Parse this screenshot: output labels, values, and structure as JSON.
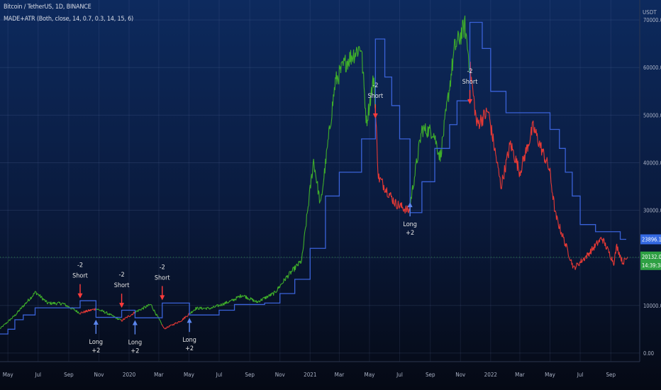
{
  "header": {
    "symbol_line": "Bitcoin / TetherUS, 1D, BINANCE",
    "indicator_line": "MADE+ATR (Both, close, 14, 0.7, 0.3, 14, 15, 6)"
  },
  "axis": {
    "unit": "USDT"
  },
  "price_badges": {
    "upper": "23896.18",
    "last": "20132.06",
    "countdown": "14:39:38"
  },
  "colors": {
    "background_top": "#0d2a5e",
    "background_bottom": "#050914",
    "bull": "#3fae2a",
    "bear": "#e53935",
    "trail": "#3a62d8",
    "short_arrow": "#ff3b3b",
    "long_arrow": "#5b86ee",
    "label_text": "#e6e6e6",
    "axis_text": "#aab2c5",
    "upper_badge": "#3469e2",
    "last_badge": "#2ea043"
  },
  "chart_data": {
    "type": "line",
    "x_ticks": [
      "May",
      "Jul",
      "Sep",
      "Nov",
      "2020",
      "Mar",
      "May",
      "Jul",
      "Sep",
      "Nov",
      "2021",
      "Mar",
      "May",
      "Jul",
      "Sep",
      "Nov",
      "2022",
      "Mar",
      "May",
      "Jul",
      "Sep"
    ],
    "y_ticks": [
      "0.00",
      "10000.00",
      "20000.00",
      "30000.00",
      "40000.00",
      "50000.00",
      "60000.00",
      "70000.00"
    ],
    "ylim": [
      -3000,
      73000
    ],
    "grid": true,
    "series": [
      {
        "role": "price",
        "points": [
          [
            "2019-04-15",
            5100
          ],
          [
            "2019-05-15",
            7900
          ],
          [
            "2019-06-26",
            12800
          ],
          [
            "2019-07-20",
            10500
          ],
          [
            "2019-08-20",
            10400
          ],
          [
            "2019-09-24",
            8400
          ],
          [
            "2019-10-26",
            9300
          ],
          [
            "2019-11-15",
            8500
          ],
          [
            "2019-12-17",
            6800
          ],
          [
            "2020-01-15",
            8700
          ],
          [
            "2020-02-14",
            10200
          ],
          [
            "2020-03-12",
            5100
          ],
          [
            "2020-04-15",
            6800
          ],
          [
            "2020-05-15",
            9400
          ],
          [
            "2020-06-15",
            9400
          ],
          [
            "2020-07-27",
            11000
          ],
          [
            "2020-08-17",
            12200
          ],
          [
            "2020-09-15",
            10700
          ],
          [
            "2020-10-21",
            12600
          ],
          [
            "2020-11-15",
            16000
          ],
          [
            "2020-12-15",
            19400
          ],
          [
            "2021-01-08",
            40500
          ],
          [
            "2021-01-22",
            31000
          ],
          [
            "2021-02-21",
            57000
          ],
          [
            "2021-03-13",
            61000
          ],
          [
            "2021-04-14",
            64500
          ],
          [
            "2021-04-25",
            48500
          ],
          [
            "2021-05-10",
            58000
          ],
          [
            "2021-05-19",
            37000
          ],
          [
            "2021-06-22",
            31500
          ],
          [
            "2021-07-20",
            29800
          ],
          [
            "2021-08-15",
            47000
          ],
          [
            "2021-09-07",
            46500
          ],
          [
            "2021-09-21",
            41000
          ],
          [
            "2021-10-20",
            64000
          ],
          [
            "2021-11-10",
            68800
          ],
          [
            "2021-12-04",
            48000
          ],
          [
            "2021-12-27",
            50800
          ],
          [
            "2022-01-22",
            35000
          ],
          [
            "2022-02-10",
            44000
          ],
          [
            "2022-03-01",
            38000
          ],
          [
            "2022-03-28",
            47500
          ],
          [
            "2022-04-30",
            38500
          ],
          [
            "2022-05-12",
            29000
          ],
          [
            "2022-06-18",
            17800
          ],
          [
            "2022-07-15",
            20500
          ],
          [
            "2022-08-14",
            24200
          ],
          [
            "2022-09-07",
            19000
          ],
          [
            "2022-09-13",
            22500
          ],
          [
            "2022-09-25",
            19000
          ],
          [
            "2022-10-05",
            20132
          ]
        ],
        "bear_periods": [
          [
            "2019-09-24",
            "2019-10-26"
          ],
          [
            "2019-12-17",
            "2020-01-13"
          ],
          [
            "2020-03-08",
            "2020-05-02"
          ],
          [
            "2021-05-13",
            "2021-07-22"
          ],
          [
            "2021-11-20",
            "2022-10-05"
          ]
        ]
      },
      {
        "role": "trailing_stop",
        "steps": [
          [
            "2019-04-15",
            4000
          ],
          [
            "2019-05-01",
            5000
          ],
          [
            "2019-05-15",
            7000
          ],
          [
            "2019-06-01",
            8000
          ],
          [
            "2019-06-25",
            9500
          ],
          [
            "2019-09-24",
            11000
          ],
          [
            "2019-10-26",
            7500
          ],
          [
            "2019-12-17",
            9000
          ],
          [
            "2020-01-13",
            7400
          ],
          [
            "2020-03-08",
            10500
          ],
          [
            "2020-05-02",
            8000
          ],
          [
            "2020-07-01",
            9000
          ],
          [
            "2020-08-01",
            10200
          ],
          [
            "2020-10-01",
            10500
          ],
          [
            "2020-11-01",
            12500
          ],
          [
            "2020-12-01",
            15500
          ],
          [
            "2021-01-01",
            22000
          ],
          [
            "2021-02-01",
            33000
          ],
          [
            "2021-03-01",
            38000
          ],
          [
            "2021-04-15",
            45000
          ],
          [
            "2021-05-13",
            66000
          ],
          [
            "2021-06-01",
            58000
          ],
          [
            "2021-06-15",
            52000
          ],
          [
            "2021-07-01",
            45000
          ],
          [
            "2021-07-22",
            29500
          ],
          [
            "2021-08-15",
            36000
          ],
          [
            "2021-09-10",
            43000
          ],
          [
            "2021-10-10",
            48000
          ],
          [
            "2021-10-25",
            53000
          ],
          [
            "2021-11-20",
            69500
          ],
          [
            "2021-12-15",
            64000
          ],
          [
            "2022-01-01",
            55000
          ],
          [
            "2022-02-01",
            50500
          ],
          [
            "2022-05-01",
            47000
          ],
          [
            "2022-05-20",
            43000
          ],
          [
            "2022-06-01",
            38000
          ],
          [
            "2022-06-15",
            33000
          ],
          [
            "2022-07-01",
            27000
          ],
          [
            "2022-08-01",
            25500
          ],
          [
            "2022-09-20",
            23896
          ]
        ]
      }
    ],
    "signals": [
      {
        "type": "short",
        "date": "2019-09-24",
        "price": 11200,
        "value": "-2",
        "label": "Short"
      },
      {
        "type": "long",
        "date": "2019-10-26",
        "price": 7300,
        "value": "+2",
        "label": "Long"
      },
      {
        "type": "short",
        "date": "2019-12-17",
        "price": 9200,
        "value": "-2",
        "label": "Short"
      },
      {
        "type": "long",
        "date": "2020-01-13",
        "price": 7200,
        "value": "+2",
        "label": "Long"
      },
      {
        "type": "short",
        "date": "2020-03-08",
        "price": 10800,
        "value": "-2",
        "label": "Short"
      },
      {
        "type": "long",
        "date": "2020-05-02",
        "price": 7700,
        "value": "+2",
        "label": "Long"
      },
      {
        "type": "short",
        "date": "2021-05-13",
        "price": 49000,
        "value": "-2",
        "label": "Short"
      },
      {
        "type": "long",
        "date": "2021-07-22",
        "price": 32000,
        "value": "+2",
        "label": "Long"
      },
      {
        "type": "short",
        "date": "2021-11-20",
        "price": 52000,
        "value": "-2",
        "label": "Short"
      }
    ]
  }
}
